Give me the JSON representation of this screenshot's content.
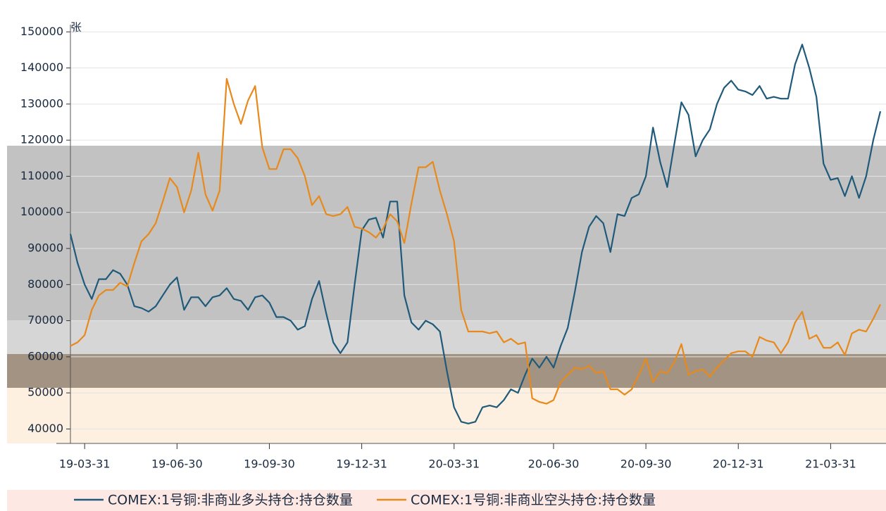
{
  "chart_data": {
    "type": "line",
    "y_unit_label": "张",
    "categories": [
      null,
      null,
      "19-03-31",
      null,
      null,
      null,
      null,
      null,
      null,
      null,
      null,
      null,
      null,
      null,
      null,
      "19-06-30",
      null,
      null,
      null,
      null,
      null,
      null,
      null,
      null,
      null,
      null,
      null,
      null,
      "19-09-30",
      null,
      null,
      null,
      null,
      null,
      null,
      null,
      null,
      null,
      null,
      null,
      null,
      "19-12-31",
      null,
      null,
      null,
      null,
      null,
      null,
      null,
      null,
      null,
      null,
      null,
      null,
      "20-03-31",
      null,
      null,
      null,
      null,
      null,
      null,
      null,
      null,
      null,
      null,
      null,
      null,
      null,
      "20-06-30",
      null,
      null,
      null,
      null,
      null,
      null,
      null,
      null,
      null,
      null,
      null,
      null,
      "20-09-30",
      null,
      null,
      null,
      null,
      null,
      null,
      null,
      null,
      null,
      null,
      null,
      null,
      "20-12-31",
      null,
      null,
      null,
      null,
      null,
      null,
      null,
      null,
      null,
      null,
      null,
      null,
      "21-03-31",
      null,
      null,
      null,
      null,
      null,
      null,
      null
    ],
    "series": [
      {
        "name": "COMEX:1号铜:非商业多头持仓:持仓数量",
        "color": "#1f5a7a",
        "values": [
          94000,
          86000,
          80000,
          76000,
          81500,
          81500,
          84000,
          83000,
          80000,
          74000,
          73500,
          72500,
          74000,
          77000,
          80000,
          82000,
          73000,
          76500,
          76500,
          74000,
          76500,
          77000,
          79000,
          76000,
          75500,
          73000,
          76500,
          77000,
          75000,
          71000,
          71000,
          70000,
          67500,
          68500,
          76000,
          81000,
          72000,
          64000,
          61000,
          64000,
          80000,
          95000,
          98000,
          98500,
          93000,
          103000,
          103000,
          77000,
          69500,
          67500,
          70000,
          69000,
          67000,
          56000,
          46000,
          42000,
          41500,
          42000,
          46000,
          46500,
          46000,
          48000,
          51000,
          50000,
          55000,
          59500,
          57000,
          60000,
          57000,
          63000,
          68000,
          78000,
          89000,
          96000,
          99000,
          97000,
          89000,
          99500,
          99000,
          104000,
          105000,
          110000,
          123500,
          114000,
          107000,
          119000,
          130500,
          127000,
          115500,
          120000,
          123000,
          130000,
          134500,
          136500,
          134000,
          133500,
          132500,
          135000,
          131500,
          132000,
          131500,
          131500,
          141000,
          146500,
          140000,
          132000,
          113500,
          109000,
          109500,
          104500,
          110000,
          104000,
          110000,
          120000,
          128000
        ]
      },
      {
        "name": "COMEX:1号铜:非商业空头持仓:持仓数量",
        "color": "#e8891c",
        "values": [
          63000,
          64000,
          66000,
          73000,
          77000,
          78500,
          78500,
          80500,
          79500,
          86000,
          92000,
          94000,
          97000,
          103000,
          109500,
          107000,
          100000,
          106000,
          116500,
          105000,
          100500,
          106000,
          137000,
          130000,
          124500,
          131000,
          135000,
          118000,
          112000,
          112000,
          117500,
          117500,
          115000,
          110000,
          102000,
          104500,
          99500,
          99000,
          99500,
          101500,
          96000,
          95500,
          94500,
          93000,
          95500,
          99500,
          97500,
          91500,
          102500,
          112500,
          112500,
          114000,
          106000,
          99500,
          92000,
          73000,
          67000,
          67000,
          67000,
          66500,
          67000,
          64000,
          65000,
          63500,
          64000,
          48500,
          47500,
          47000,
          48000,
          53000,
          55000,
          57000,
          56500,
          57500,
          55500,
          56000,
          51000,
          51000,
          49500,
          51000,
          55000,
          59500,
          53000,
          56000,
          55500,
          58500,
          63500,
          55000,
          56000,
          56500,
          54500,
          57000,
          59000,
          61000,
          61500,
          61500,
          60000,
          65500,
          64500,
          64000,
          61000,
          64000,
          69500,
          72500,
          65000,
          66000,
          62500,
          62500,
          64000,
          60500,
          66500,
          67500,
          67000,
          70500,
          74500
        ]
      }
    ],
    "ylim": [
      36000,
      152000
    ],
    "yticks": [
      40000,
      50000,
      60000,
      70000,
      80000,
      90000,
      100000,
      110000,
      120000,
      130000,
      140000,
      150000
    ],
    "grid": true
  }
}
